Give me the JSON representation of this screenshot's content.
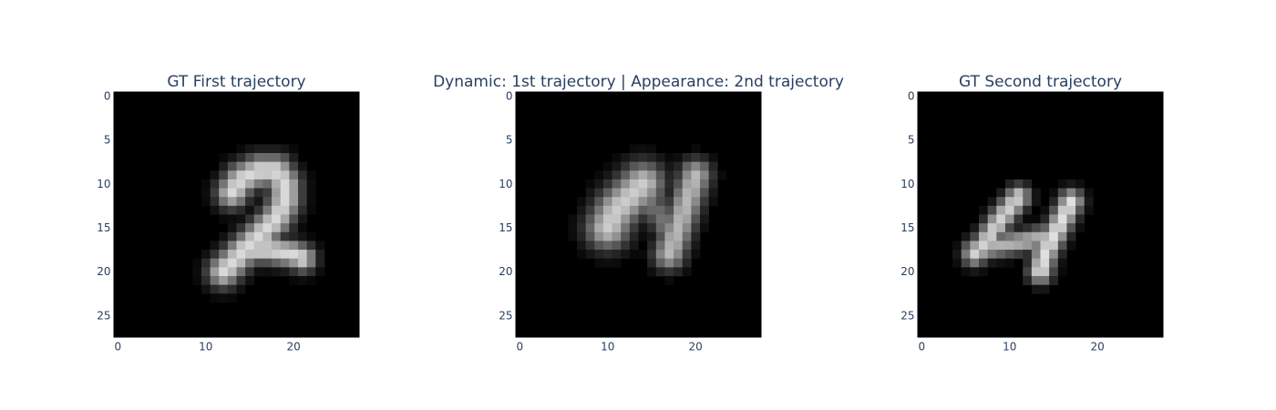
{
  "chart_data": [
    {
      "type": "heatmap",
      "title": "GT First trajectory",
      "colorscale": "gray",
      "xlim": [
        0,
        27
      ],
      "ylim": [
        27,
        0
      ],
      "xticks": [
        0,
        10,
        20
      ],
      "yticks": [
        0,
        5,
        10,
        15,
        20,
        25
      ],
      "strokes": [
        {
          "points": [
            [
              13,
              11
            ],
            [
              14,
              9.5
            ],
            [
              16,
              8.5
            ],
            [
              18,
              8.5
            ],
            [
              19,
              10
            ],
            [
              19,
              12
            ],
            [
              18,
              14
            ],
            [
              16,
              16
            ],
            [
              14,
              18
            ],
            [
              12,
              20
            ]
          ],
          "width": 1.25,
          "intensity": 0.85
        },
        {
          "points": [
            [
              14,
              17.5
            ],
            [
              17,
              17.5
            ],
            [
              20,
              18
            ],
            [
              21,
              18.5
            ]
          ],
          "width": 1.05,
          "intensity": 0.85
        }
      ]
    },
    {
      "type": "heatmap",
      "title": "Dynamic: 1st trajectory | Appearance: 2nd trajectory",
      "colorscale": "gray",
      "xlim": [
        0,
        27
      ],
      "ylim": [
        27,
        0
      ],
      "xticks": [
        0,
        10,
        20
      ],
      "yticks": [
        0,
        5,
        10,
        15,
        20,
        25
      ],
      "strokes": [
        {
          "points": [
            [
              10,
              15
            ],
            [
              11,
              13
            ],
            [
              13,
              11
            ],
            [
              14,
              10
            ]
          ],
          "width": 1.7,
          "intensity": 0.8
        },
        {
          "points": [
            [
              14,
              10
            ],
            [
              15,
              12
            ],
            [
              16,
              14
            ],
            [
              17,
              16
            ],
            [
              17,
              18
            ]
          ],
          "width": 1.0,
          "intensity": 0.45
        },
        {
          "points": [
            [
              17,
              18
            ],
            [
              18,
              15
            ],
            [
              19,
              12
            ],
            [
              20,
              9
            ]
          ],
          "width": 1.25,
          "intensity": 0.72
        }
      ]
    },
    {
      "type": "heatmap",
      "title": "GT Second trajectory",
      "colorscale": "gray",
      "xlim": [
        0,
        27
      ],
      "ylim": [
        27,
        0
      ],
      "xticks": [
        0,
        10,
        20
      ],
      "yticks": [
        0,
        5,
        10,
        15,
        20,
        25
      ],
      "strokes": [
        {
          "points": [
            [
              11,
              11.5
            ],
            [
              9,
              14
            ],
            [
              7,
              17
            ],
            [
              6,
              18
            ]
          ],
          "width": 0.95,
          "intensity": 0.82
        },
        {
          "points": [
            [
              6,
              17.5
            ],
            [
              9,
              17
            ],
            [
              12,
              16.5
            ],
            [
              14,
              16
            ]
          ],
          "width": 0.9,
          "intensity": 0.7
        },
        {
          "points": [
            [
              17,
              12
            ],
            [
              16,
              14
            ],
            [
              15,
              16
            ],
            [
              14,
              18
            ],
            [
              13.5,
              20
            ]
          ],
          "width": 0.95,
          "intensity": 0.88
        }
      ]
    }
  ]
}
